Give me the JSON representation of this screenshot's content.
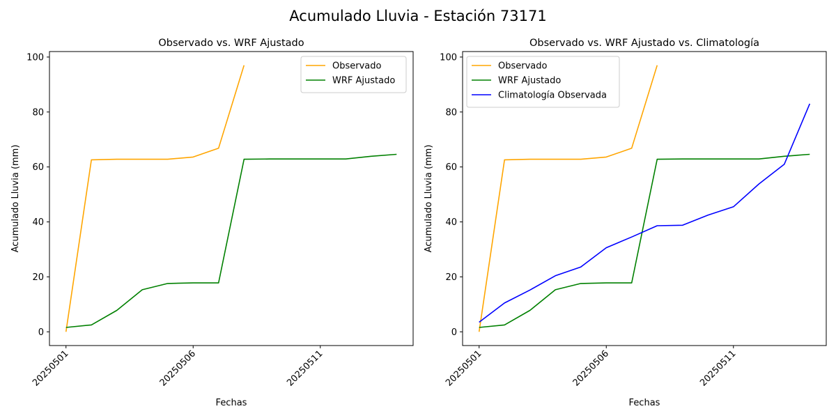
{
  "figure": {
    "suptitle": "Acumulado Lluvia - Estación 73171"
  },
  "chart_data": [
    {
      "type": "line",
      "title": "Observado vs. WRF Ajustado",
      "xlabel": "Fechas",
      "ylabel": "Acumulado Lluvia (mm)",
      "x_tick_labels": [
        "20250501",
        "20250506",
        "20250511"
      ],
      "y_tick_labels": [
        "0",
        "20",
        "40",
        "60",
        "80",
        "100"
      ],
      "ylim": [
        -5,
        102
      ],
      "xlim": [
        -0.65,
        13.65
      ],
      "grid": false,
      "legend_position": "upper right",
      "series": [
        {
          "name": "Observado",
          "color": "#FFA500",
          "x": [
            "20250501",
            "20250502",
            "20250503",
            "20250504",
            "20250505",
            "20250506",
            "20250507",
            "20250508"
          ],
          "values": [
            0.0,
            62.6,
            62.8,
            62.8,
            62.8,
            63.6,
            66.8,
            97.0
          ]
        },
        {
          "name": "WRF Ajustado",
          "color": "#008000",
          "x": [
            "20250501",
            "20250502",
            "20250503",
            "20250504",
            "20250505",
            "20250506",
            "20250507",
            "20250508",
            "20250509",
            "20250510",
            "20250511",
            "20250512",
            "20250513",
            "20250514"
          ],
          "values": [
            1.6,
            2.5,
            7.8,
            15.3,
            17.6,
            17.8,
            17.8,
            62.8,
            62.9,
            62.9,
            62.9,
            62.9,
            63.9,
            64.6
          ]
        }
      ]
    },
    {
      "type": "line",
      "title": "Observado vs. WRF Ajustado vs. Climatología",
      "xlabel": "Fechas",
      "ylabel": "Acumulado Lluvia (mm)",
      "x_tick_labels": [
        "20250501",
        "20250506",
        "20250511"
      ],
      "y_tick_labels": [
        "0",
        "20",
        "40",
        "60",
        "80",
        "100"
      ],
      "ylim": [
        -5,
        102
      ],
      "xlim": [
        -0.65,
        13.65
      ],
      "grid": false,
      "legend_position": "upper left",
      "series": [
        {
          "name": "Observado",
          "color": "#FFA500",
          "x": [
            "20250501",
            "20250502",
            "20250503",
            "20250504",
            "20250505",
            "20250506",
            "20250507",
            "20250508"
          ],
          "values": [
            0.0,
            62.6,
            62.8,
            62.8,
            62.8,
            63.6,
            66.8,
            97.0
          ]
        },
        {
          "name": "WRF Ajustado",
          "color": "#008000",
          "x": [
            "20250501",
            "20250502",
            "20250503",
            "20250504",
            "20250505",
            "20250506",
            "20250507",
            "20250508",
            "20250509",
            "20250510",
            "20250511",
            "20250512",
            "20250513",
            "20250514"
          ],
          "values": [
            1.6,
            2.5,
            7.8,
            15.3,
            17.6,
            17.8,
            17.8,
            62.8,
            62.9,
            62.9,
            62.9,
            62.9,
            63.9,
            64.6
          ]
        },
        {
          "name": "Climatología Observada",
          "color": "#0000FF",
          "x": [
            "20250501",
            "20250502",
            "20250503",
            "20250504",
            "20250505",
            "20250506",
            "20250507",
            "20250508",
            "20250509",
            "20250510",
            "20250511",
            "20250512",
            "20250513",
            "20250514"
          ],
          "values": [
            3.5,
            10.5,
            15.2,
            20.4,
            23.6,
            30.6,
            34.5,
            38.6,
            38.8,
            42.5,
            45.5,
            53.8,
            61.0,
            83.0
          ]
        }
      ]
    }
  ]
}
